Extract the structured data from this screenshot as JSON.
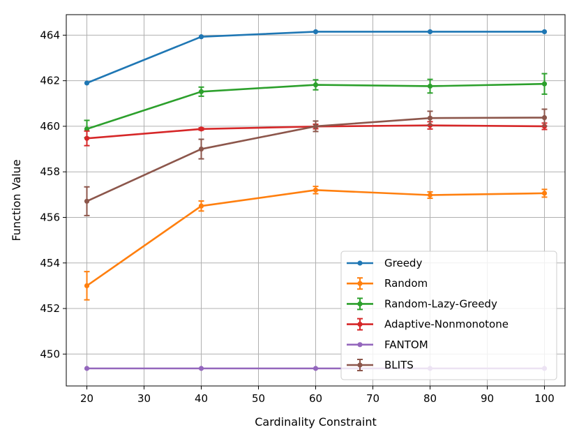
{
  "chart_data": {
    "type": "line",
    "title": "",
    "xlabel": "Cardinality Constraint",
    "ylabel": "Function Value",
    "xlim": [
      16.4,
      103.6
    ],
    "ylim": [
      448.6,
      464.9
    ],
    "xticks": [
      20,
      30,
      40,
      50,
      60,
      70,
      80,
      90,
      100
    ],
    "yticks": [
      450,
      452,
      454,
      456,
      458,
      460,
      462,
      464
    ],
    "grid": true,
    "legend_position": "lower-right",
    "x": [
      20,
      40,
      60,
      80,
      100
    ],
    "series": [
      {
        "name": "Greedy",
        "color": "#1f77b4",
        "values": [
          461.9,
          463.93,
          464.15,
          464.15,
          464.15
        ],
        "errors": null
      },
      {
        "name": "Random",
        "color": "#ff7f0e",
        "values": [
          453.0,
          456.5,
          457.2,
          456.98,
          457.06
        ],
        "errors": [
          0.62,
          0.22,
          0.16,
          0.14,
          0.17
        ]
      },
      {
        "name": "Random-Lazy-Greedy",
        "color": "#2ca02c",
        "values": [
          459.88,
          461.52,
          461.82,
          461.76,
          461.86
        ],
        "errors": [
          0.38,
          0.2,
          0.22,
          0.3,
          0.45
        ]
      },
      {
        "name": "Adaptive-Nonmonotone",
        "color": "#d62728",
        "values": [
          459.47,
          459.88,
          459.99,
          460.04,
          460.0
        ],
        "errors": [
          0.32,
          0.05,
          0.1,
          0.16,
          0.14
        ]
      },
      {
        "name": "FANTOM",
        "color": "#9467bd",
        "values": [
          449.37,
          449.37,
          449.37,
          449.37,
          449.37
        ],
        "errors": null
      },
      {
        "name": "BLITS",
        "color": "#8c564b",
        "values": [
          456.71,
          459.0,
          460.0,
          460.36,
          460.38
        ],
        "errors": [
          0.63,
          0.43,
          0.23,
          0.3,
          0.37
        ]
      }
    ]
  }
}
